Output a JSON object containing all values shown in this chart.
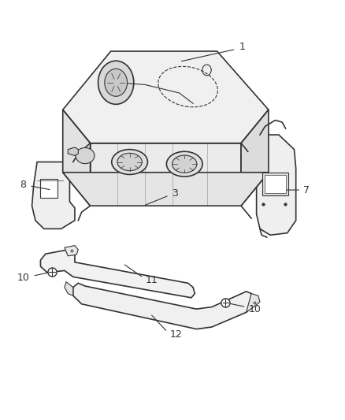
{
  "background_color": "#ffffff",
  "line_color": "#333333",
  "label_color": "#333333",
  "fig_width": 4.38,
  "fig_height": 5.33,
  "dpi": 100,
  "label_fontsize": 9
}
